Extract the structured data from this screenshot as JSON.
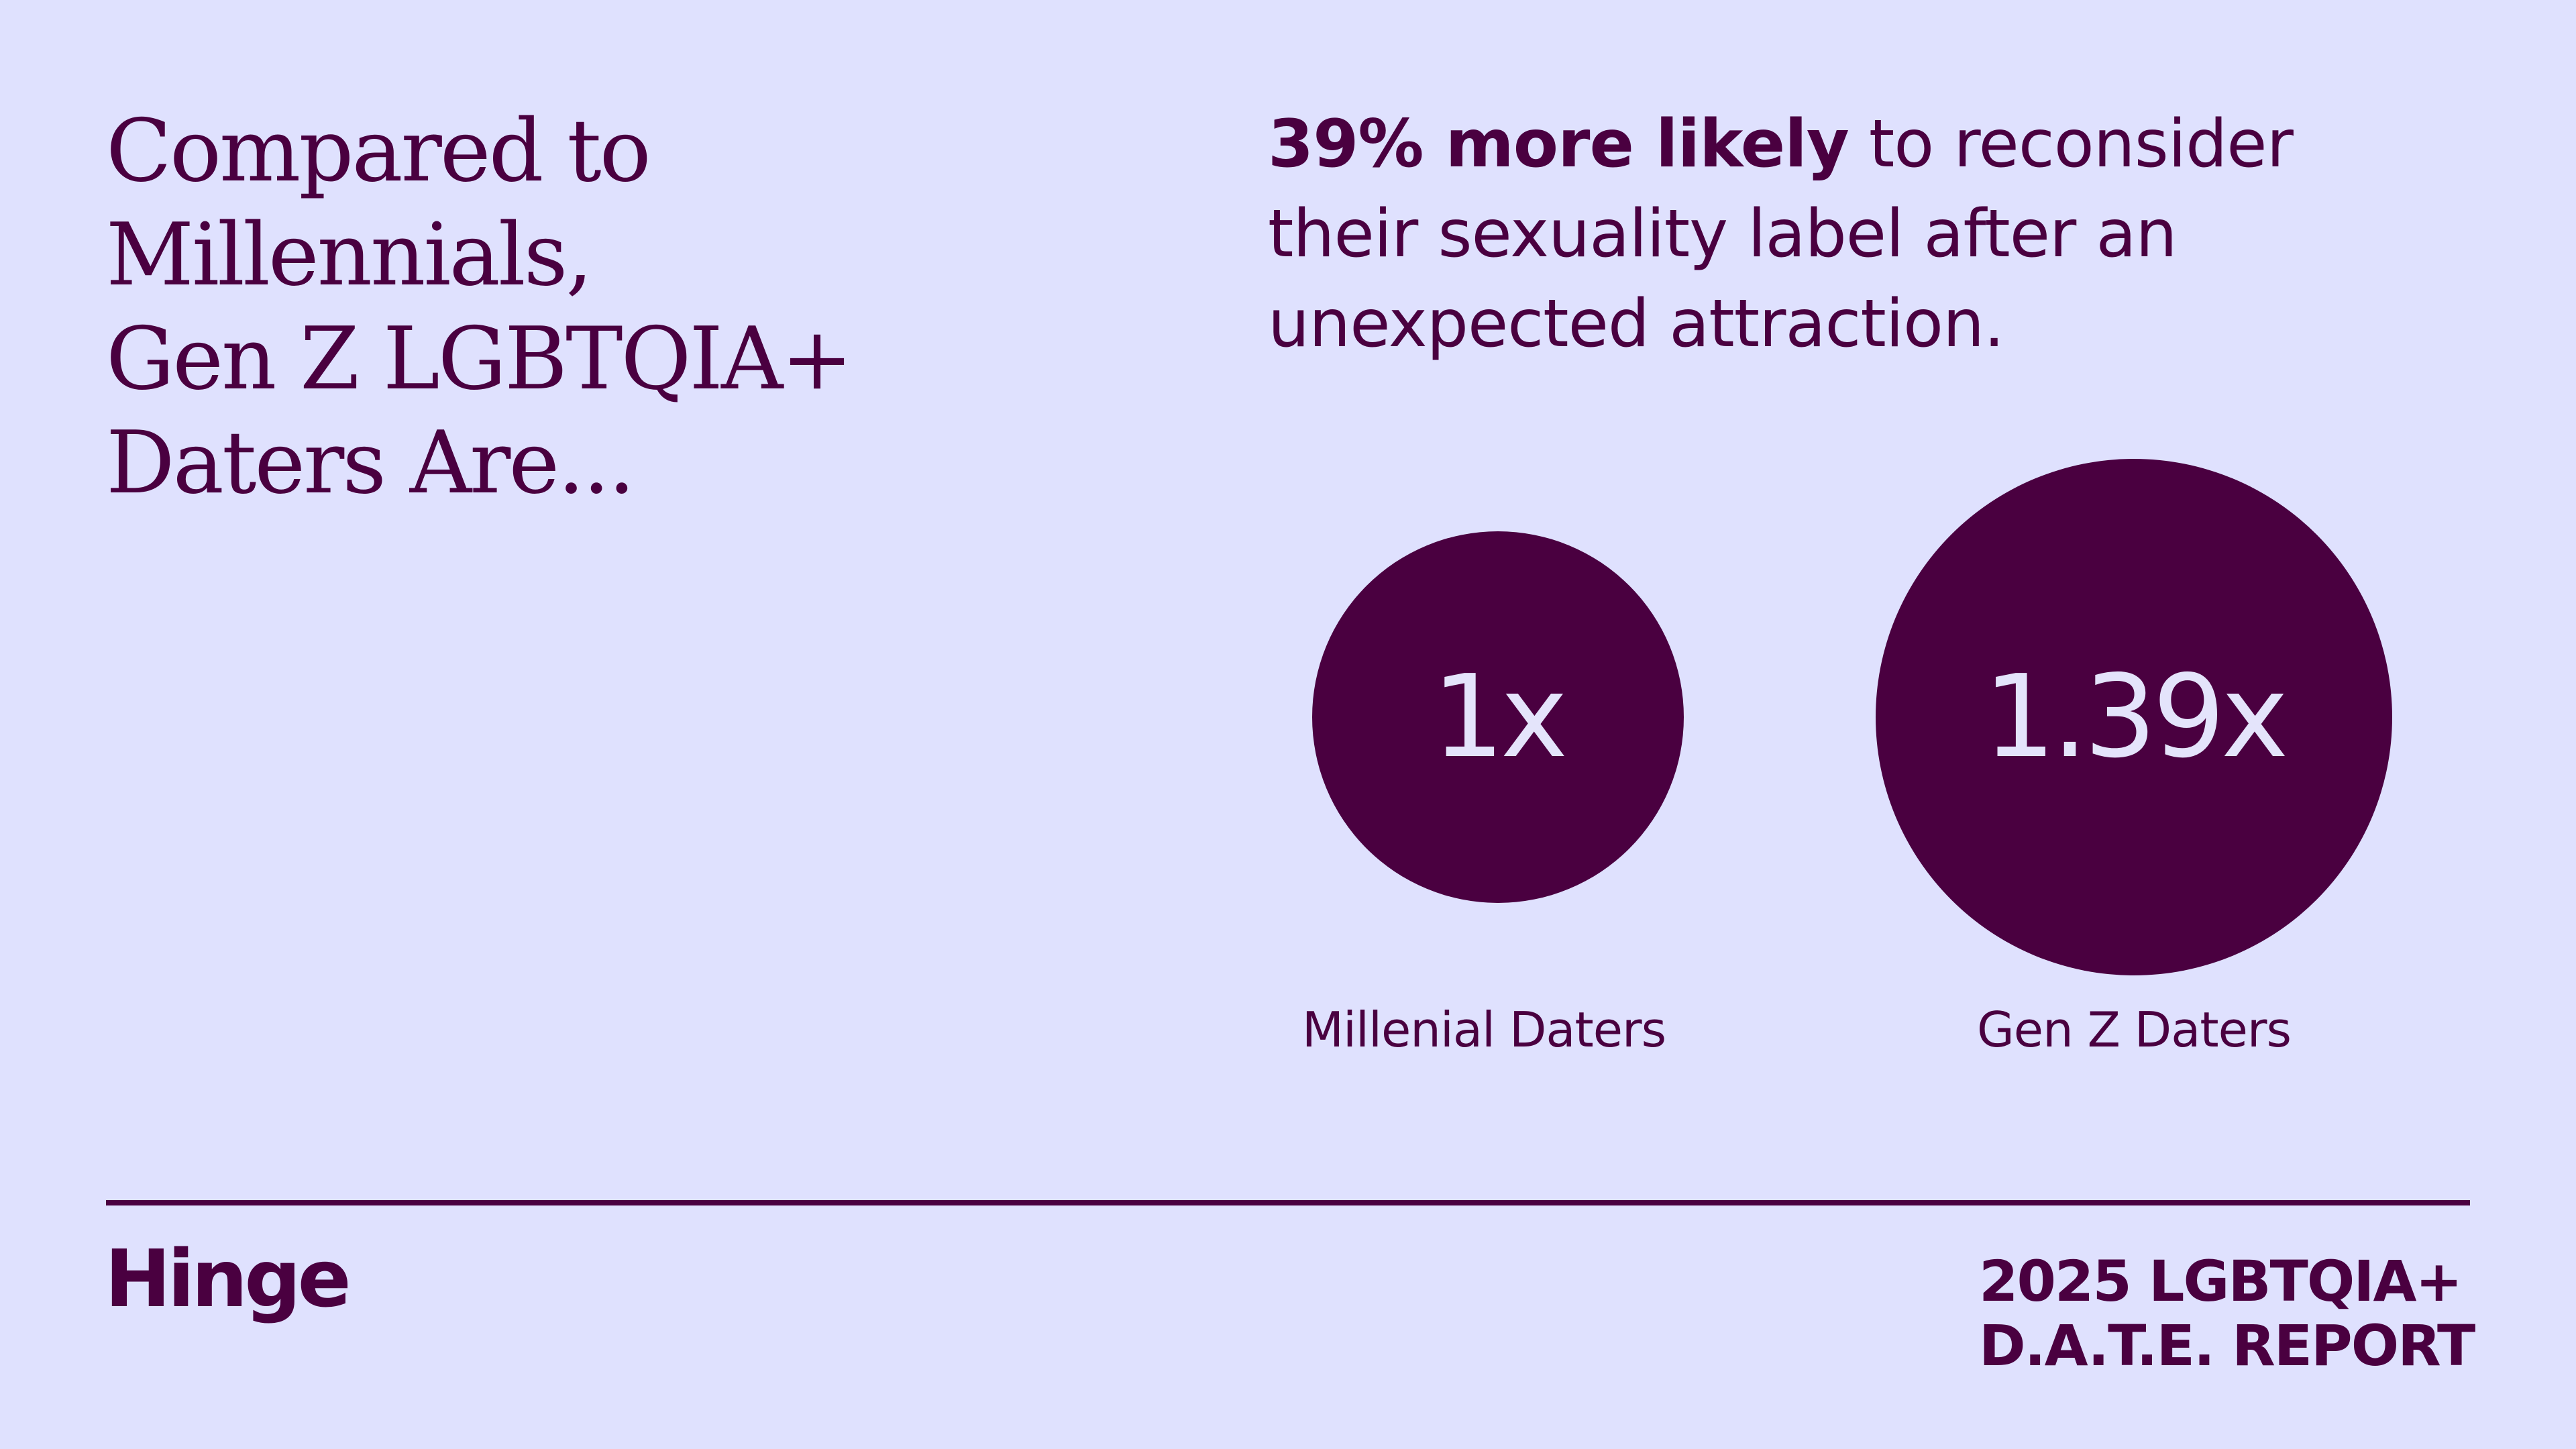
{
  "headline": {
    "lines": [
      "Compared to",
      "Millennials,",
      "Gen Z LGBTQIA+",
      "Daters Are..."
    ]
  },
  "stat": {
    "highlight": "39% more likely",
    "line1_rest": " to reconsider",
    "line2": "their sexuality label after an",
    "line3": "unexpected attraction."
  },
  "comparison": [
    {
      "value": "1x",
      "label": "Millenial Daters"
    },
    {
      "value": "1.39x",
      "label": "Gen Z Daters"
    }
  ],
  "footer": {
    "logo": "Hinge",
    "report_lines": [
      "2025 LGBTQIA+",
      "D.A.T.E. REPORT"
    ]
  },
  "colors": {
    "background": "#dfe1fe",
    "brand": "#4a0040",
    "circle_text": "#e4e4fb"
  }
}
